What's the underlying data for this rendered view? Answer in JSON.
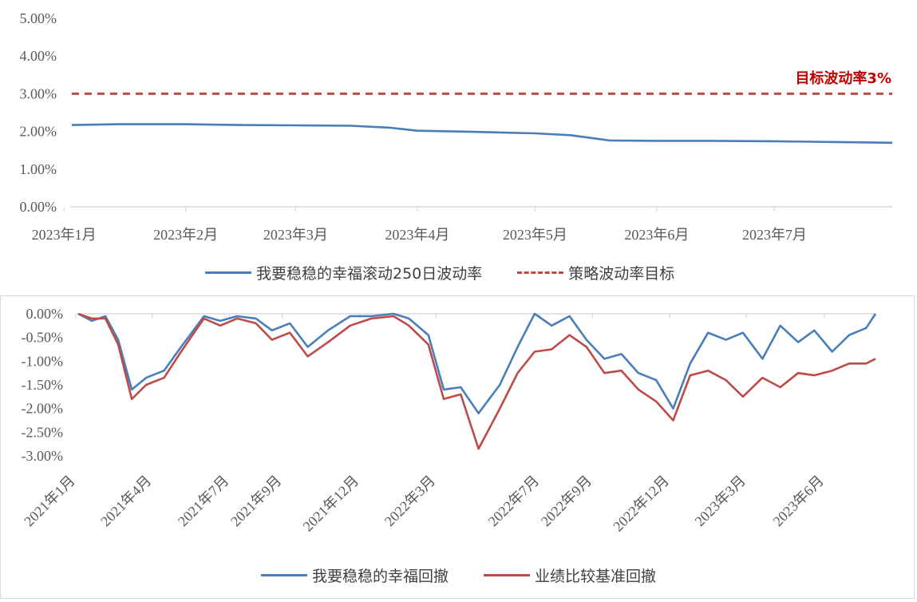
{
  "colors": {
    "strategy": "#4a7ebb",
    "benchmark": "#be4b48",
    "target": "#c00000",
    "axis": "#d9d9d9",
    "text": "#595959"
  },
  "chart_data": [
    {
      "type": "line",
      "title": "",
      "xlabel": "",
      "ylabel": "",
      "x_ticks": [
        "2023年1月",
        "2023年2月",
        "2023年3月",
        "2023年4月",
        "2023年5月",
        "2023年6月",
        "2023年7月"
      ],
      "y_ticks": [
        "0.00%",
        "1.00%",
        "2.00%",
        "3.00%",
        "4.00%",
        "5.00%"
      ],
      "ylim": [
        0,
        5
      ],
      "y_unit": "%",
      "grid": false,
      "legend_position": "bottom",
      "x": [
        "2023-01-03",
        "2023-01-15",
        "2023-02-01",
        "2023-02-15",
        "2023-03-01",
        "2023-03-15",
        "2023-03-25",
        "2023-04-01",
        "2023-04-15",
        "2023-05-01",
        "2023-05-10",
        "2023-05-20",
        "2023-06-01",
        "2023-06-15",
        "2023-07-01",
        "2023-07-15",
        "2023-07-31"
      ],
      "series": [
        {
          "name": "我要稳稳的幸福滚动250日波动率",
          "style": "solid",
          "values": [
            2.17,
            2.19,
            2.19,
            2.17,
            2.16,
            2.15,
            2.1,
            2.02,
            1.99,
            1.95,
            1.9,
            1.76,
            1.75,
            1.75,
            1.74,
            1.72,
            1.7
          ]
        },
        {
          "name": "策略波动率目标",
          "style": "dashed",
          "values": [
            3.0,
            3.0,
            3.0,
            3.0,
            3.0,
            3.0,
            3.0,
            3.0,
            3.0,
            3.0,
            3.0,
            3.0,
            3.0,
            3.0,
            3.0,
            3.0,
            3.0
          ]
        }
      ],
      "annotation": "目标波动率3%"
    },
    {
      "type": "line",
      "title": "",
      "xlabel": "",
      "ylabel": "",
      "x_ticks": [
        "2021年1月",
        "2021年4月",
        "2021年7月",
        "2021年9月",
        "2021年12月",
        "2022年3月",
        "2022年7月",
        "2022年9月",
        "2022年12月",
        "2023年3月",
        "2023年6月"
      ],
      "y_ticks": [
        "0.00%",
        "-0.50%",
        "-1.00%",
        "-1.50%",
        "-2.00%",
        "-2.50%",
        "-3.00%"
      ],
      "ylim": [
        -3,
        0
      ],
      "y_unit": "%",
      "grid": false,
      "legend_position": "bottom",
      "x": [
        "2021-01-04",
        "2021-01-20",
        "2021-02-05",
        "2021-02-20",
        "2021-03-08",
        "2021-03-25",
        "2021-04-15",
        "2021-05-05",
        "2021-06-01",
        "2021-06-20",
        "2021-07-10",
        "2021-08-01",
        "2021-08-20",
        "2021-09-10",
        "2021-10-01",
        "2021-10-25",
        "2021-11-20",
        "2021-12-15",
        "2022-01-10",
        "2022-01-28",
        "2022-02-20",
        "2022-03-10",
        "2022-03-30",
        "2022-04-20",
        "2022-05-15",
        "2022-06-05",
        "2022-06-25",
        "2022-07-15",
        "2022-08-05",
        "2022-08-25",
        "2022-09-15",
        "2022-10-05",
        "2022-10-25",
        "2022-11-15",
        "2022-12-05",
        "2022-12-25",
        "2023-01-15",
        "2023-02-05",
        "2023-02-25",
        "2023-03-20",
        "2023-04-10",
        "2023-05-01",
        "2023-05-20",
        "2023-06-10",
        "2023-06-30",
        "2023-07-20",
        "2023-07-31"
      ],
      "series": [
        {
          "name": "我要稳稳的幸福回撤",
          "color": "#4a7ebb",
          "values": [
            0.0,
            -0.15,
            -0.05,
            -0.55,
            -1.6,
            -1.35,
            -1.2,
            -0.7,
            -0.05,
            -0.15,
            -0.05,
            -0.1,
            -0.35,
            -0.2,
            -0.7,
            -0.35,
            -0.05,
            -0.05,
            0.0,
            -0.1,
            -0.45,
            -1.6,
            -1.55,
            -2.1,
            -1.5,
            -0.7,
            0.0,
            -0.25,
            -0.05,
            -0.55,
            -0.95,
            -0.85,
            -1.25,
            -1.4,
            -2.0,
            -1.05,
            -0.4,
            -0.55,
            -0.4,
            -0.95,
            -0.25,
            -0.6,
            -0.35,
            -0.8,
            -0.45,
            -0.3,
            0.0
          ]
        },
        {
          "name": "业绩比较基准回撤",
          "color": "#be4b48",
          "values": [
            0.0,
            -0.1,
            -0.1,
            -0.65,
            -1.8,
            -1.5,
            -1.35,
            -0.8,
            -0.1,
            -0.25,
            -0.1,
            -0.2,
            -0.55,
            -0.4,
            -0.9,
            -0.6,
            -0.25,
            -0.1,
            -0.05,
            -0.25,
            -0.65,
            -1.8,
            -1.7,
            -2.85,
            -2.0,
            -1.25,
            -0.8,
            -0.75,
            -0.45,
            -0.7,
            -1.25,
            -1.2,
            -1.6,
            -1.85,
            -2.25,
            -1.3,
            -1.2,
            -1.4,
            -1.75,
            -1.35,
            -1.55,
            -1.25,
            -1.3,
            -1.2,
            -1.05,
            -1.05,
            -0.95
          ]
        }
      ]
    }
  ]
}
